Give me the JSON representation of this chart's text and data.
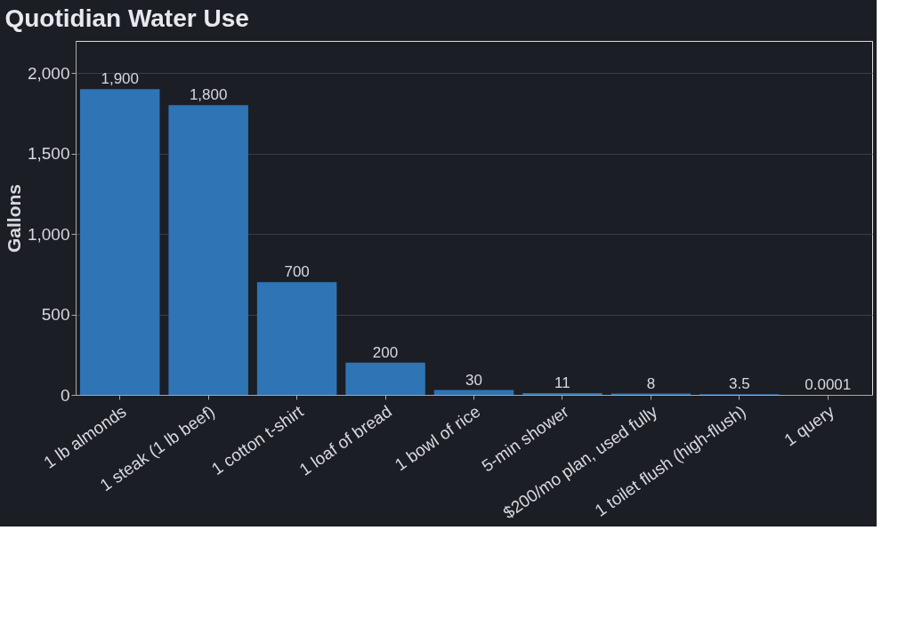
{
  "chart_data": {
    "type": "bar",
    "title": "Quotidian Water Use",
    "ylabel": "Gallons",
    "categories": [
      "1 lb almonds",
      "1 steak (1 lb beef)",
      "1 cotton t-shirt",
      "1 loaf of bread",
      "1 bowl of rice",
      "5-min shower",
      "$200/mo plan, used fully",
      "1 toilet flush (high-flush)",
      "1 query"
    ],
    "values": [
      1900,
      1800,
      700,
      200,
      30,
      11,
      8,
      3.5,
      0.0001
    ],
    "value_labels": [
      "1,900",
      "1,800",
      "700",
      "200",
      "30",
      "11",
      "8",
      "3.5",
      "0.0001"
    ],
    "color": "#2f74b5",
    "ylim": [
      0,
      2200
    ],
    "yticks": [
      0,
      500,
      {
        "value": 1000,
        "label": "1,000"
      },
      {
        "value": 1500,
        "label": "1,500"
      },
      {
        "value": 2000,
        "label": "2,000"
      }
    ],
    "grid": "y"
  }
}
